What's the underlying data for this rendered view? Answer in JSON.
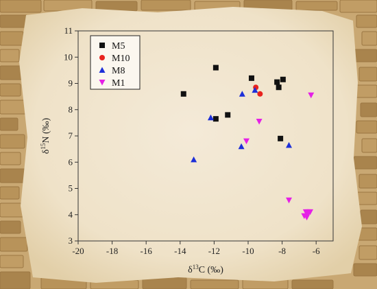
{
  "chart_data": {
    "type": "scatter",
    "title": "",
    "xlabel": "δ13C (‰)",
    "ylabel": "δ15N (‰)",
    "xlim": [
      -20,
      -5
    ],
    "ylim": [
      3,
      11
    ],
    "xticks": [
      -20,
      -18,
      -16,
      -14,
      -12,
      -10,
      -8,
      -6
    ],
    "yticks": [
      3,
      4,
      5,
      6,
      7,
      8,
      9,
      10,
      11
    ],
    "grid": false,
    "legend": "top-left",
    "series": [
      {
        "name": "M5",
        "marker": "square",
        "color": "#111111",
        "points": [
          {
            "x": -13.8,
            "y": 8.6
          },
          {
            "x": -11.9,
            "y": 9.6
          },
          {
            "x": -11.9,
            "y": 7.65
          },
          {
            "x": -11.2,
            "y": 7.8
          },
          {
            "x": -9.8,
            "y": 9.2
          },
          {
            "x": -8.3,
            "y": 9.05
          },
          {
            "x": -8.2,
            "y": 8.85
          },
          {
            "x": -7.95,
            "y": 9.15
          },
          {
            "x": -8.1,
            "y": 6.9
          }
        ]
      },
      {
        "name": "M10",
        "marker": "circle",
        "color": "#e8231e",
        "points": [
          {
            "x": -9.55,
            "y": 8.85
          },
          {
            "x": -9.3,
            "y": 8.6
          }
        ]
      },
      {
        "name": "M8",
        "marker": "triangle-up",
        "color": "#1d2fd8",
        "points": [
          {
            "x": -13.2,
            "y": 6.1
          },
          {
            "x": -12.2,
            "y": 7.7
          },
          {
            "x": -10.35,
            "y": 8.6
          },
          {
            "x": -10.4,
            "y": 6.6
          },
          {
            "x": -9.6,
            "y": 8.75
          },
          {
            "x": -7.6,
            "y": 6.65
          }
        ]
      },
      {
        "name": "M1",
        "marker": "triangle-down",
        "color": "#e520e6",
        "points": [
          {
            "x": -6.3,
            "y": 8.55
          },
          {
            "x": -10.1,
            "y": 6.8
          },
          {
            "x": -9.35,
            "y": 7.55
          },
          {
            "x": -7.6,
            "y": 4.55
          },
          {
            "x": -6.6,
            "y": 4.1
          },
          {
            "x": -6.45,
            "y": 4.1
          },
          {
            "x": -6.35,
            "y": 4.1
          },
          {
            "x": -6.5,
            "y": 4.0
          },
          {
            "x": -6.7,
            "y": 3.95
          },
          {
            "x": -6.55,
            "y": 3.9
          }
        ]
      }
    ]
  }
}
